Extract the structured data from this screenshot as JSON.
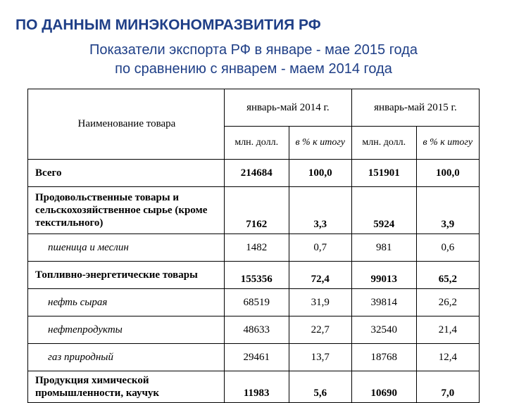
{
  "title": "ПО ДАННЫМ МИНЭКОНОМРАЗВИТИЯ РФ",
  "subtitle_l1": "Показатели экспорта РФ в январе - мае 2015 года",
  "subtitle_l2": "по сравнению с январем - маем 2014 года",
  "table": {
    "header": {
      "name": "Наименование товара",
      "period1": "январь-май 2014 г.",
      "period2": "январь-май 2015 г.",
      "mln": "млн. долл.",
      "pct": "в % к итогу"
    },
    "rows": [
      {
        "kind": "main",
        "label": "Всего",
        "v1": "214684",
        "p1": "100,0",
        "v2": "151901",
        "p2": "100,0",
        "tall": false
      },
      {
        "kind": "main",
        "label": "Продовольственные товары и сельскохозяйственное сырье (кроме текстильного)",
        "v1": "7162",
        "p1": "3,3",
        "v2": "5924",
        "p2": "3,9",
        "tall": true
      },
      {
        "kind": "sub",
        "label": "пшеница и меслин",
        "v1": "1482",
        "p1": "0,7",
        "v2": "981",
        "p2": "0,6",
        "tall": false
      },
      {
        "kind": "main",
        "label": "Топливно-энергетические товары",
        "v1": "155356",
        "p1": "72,4",
        "v2": "99013",
        "p2": "65,2",
        "tall": false,
        "tall2": true
      },
      {
        "kind": "sub",
        "label": "нефть сырая",
        "v1": "68519",
        "p1": "31,9",
        "v2": "39814",
        "p2": "26,2",
        "tall": false
      },
      {
        "kind": "sub",
        "label": "нефтепродукты",
        "v1": "48633",
        "p1": "22,7",
        "v2": "32540",
        "p2": "21,4",
        "tall": false
      },
      {
        "kind": "sub",
        "label": "газ природный",
        "v1": "29461",
        "p1": "13,7",
        "v2": "18768",
        "p2": "12,4",
        "tall": false
      },
      {
        "kind": "main",
        "label": "Продукция химической промышленности, каучук",
        "v1": "11983",
        "p1": "5,6",
        "v2": "10690",
        "p2": "7,0",
        "tall": false,
        "tall2": true
      }
    ]
  }
}
